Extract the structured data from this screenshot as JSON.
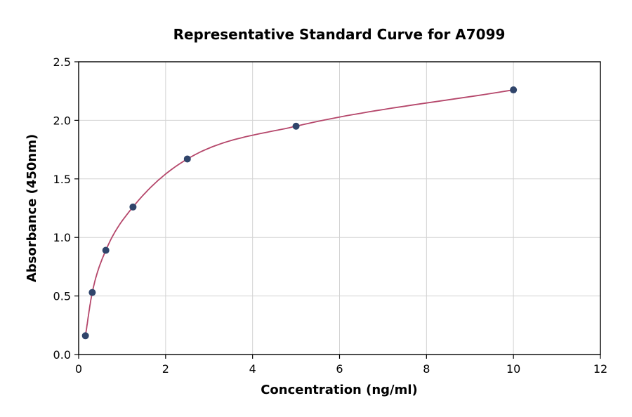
{
  "chart_data": {
    "type": "scatter",
    "title": "Representative Standard Curve for A7099",
    "xlabel": "Concentration (ng/ml)",
    "ylabel": "Absorbance (450nm)",
    "xlim": [
      0,
      12
    ],
    "ylim": [
      0,
      2.5
    ],
    "grid": true,
    "legend": "none",
    "x_ticks": [
      0,
      2,
      4,
      6,
      8,
      10,
      12
    ],
    "x_tick_labels": [
      "0",
      "2",
      "4",
      "6",
      "8",
      "10",
      "12"
    ],
    "y_ticks": [
      0,
      0.5,
      1.0,
      1.5,
      2.0,
      2.5
    ],
    "y_tick_labels": [
      "0.0",
      "0.5",
      "1.0",
      "1.5",
      "2.0",
      "2.5"
    ],
    "series": [
      {
        "name": "standard-points",
        "type": "scatter",
        "color": "#30456b",
        "marker_radius": 5,
        "x": [
          0.156,
          0.313,
          0.625,
          1.25,
          2.5,
          5,
          10
        ],
        "y": [
          0.16,
          0.53,
          0.89,
          1.26,
          1.67,
          1.95,
          2.26
        ]
      },
      {
        "name": "fit-curve",
        "type": "line",
        "color": "#b5476b"
      }
    ]
  },
  "colors": {
    "background": "#ffffff",
    "grid": "#d3d3d3",
    "axis": "#000000",
    "curve": "#b5476b",
    "points": "#30456b"
  }
}
